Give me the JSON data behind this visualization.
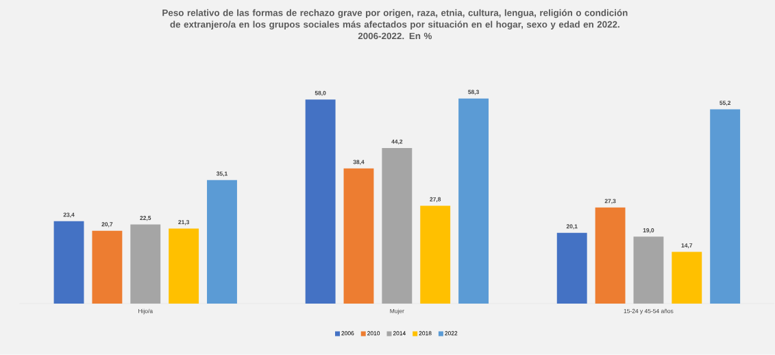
{
  "chart_data": {
    "type": "bar",
    "title": "Peso relativo de las formas de rechazo grave por origen, raza, etnia, cultura, lengua, religión o condición de extranjero/a en los grupos sociales más afectados por situación en el hogar, sexo y edad en 2022.",
    "subtitle": "2006-2022. En %",
    "categories": [
      "Hijo/a",
      "Mujer",
      "15-24 y 45-54 años"
    ],
    "series": [
      {
        "name": "2006",
        "color": "#4472c4",
        "values": [
          23.4,
          58.0,
          20.1
        ],
        "value_labels": [
          "23,4",
          "58,0",
          "20,1"
        ]
      },
      {
        "name": "2010",
        "color": "#ed7d31",
        "values": [
          20.7,
          38.4,
          27.3
        ],
        "value_labels": [
          "20,7",
          "38,4",
          "27,3"
        ]
      },
      {
        "name": "2014",
        "color": "#a5a5a5",
        "values": [
          22.5,
          44.2,
          19.0
        ],
        "value_labels": [
          "22,5",
          "44,2",
          "19,0"
        ]
      },
      {
        "name": "2018",
        "color": "#ffc000",
        "values": [
          21.3,
          27.8,
          14.7
        ],
        "value_labels": [
          "21,3",
          "27,8",
          "14,7"
        ]
      },
      {
        "name": "2022",
        "color": "#5b9bd5",
        "values": [
          35.1,
          58.3,
          55.2
        ],
        "value_labels": [
          "35,1",
          "58,3",
          "55,2"
        ]
      }
    ],
    "legend": "bottom"
  }
}
